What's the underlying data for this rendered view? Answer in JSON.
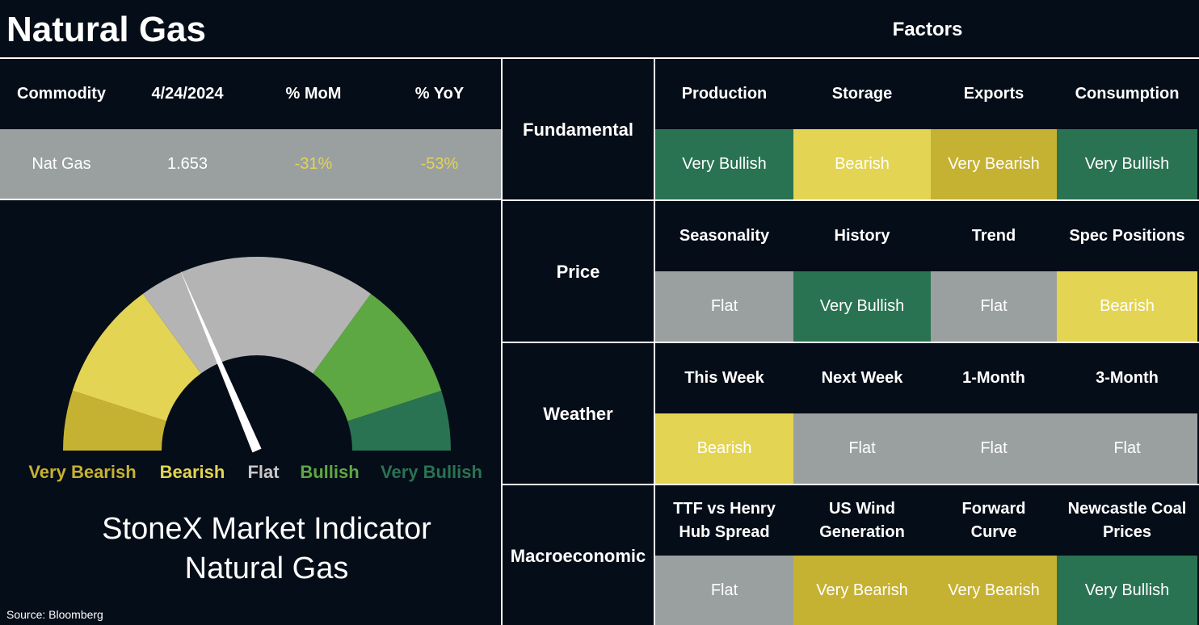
{
  "header": {
    "title": "Natural Gas",
    "factors_title": "Factors"
  },
  "scale": [
    {
      "label": "Very Bearish",
      "color": "#c6b232"
    },
    {
      "label": "Bearish",
      "color": "#e3d453"
    },
    {
      "label": "Flat",
      "color": "#9aa0a0"
    },
    {
      "label": "Bullish",
      "color": "#5ea843"
    },
    {
      "label": "Very Bullish",
      "color": "#2a7352"
    }
  ],
  "commodity_table": {
    "columns": [
      "Commodity",
      "4/24/2024",
      "% MoM",
      "% YoY"
    ],
    "row": [
      "Nat Gas",
      "1.653",
      "-31%",
      "-53%"
    ]
  },
  "indicator": {
    "lines": [
      "StoneX Market Indicator",
      "Natural Gas"
    ]
  },
  "source": "Source: Bloomberg",
  "groups": [
    {
      "name": "Fundamental",
      "factors": [
        {
          "name": [
            "Production"
          ],
          "status": "Very Bullish"
        },
        {
          "name": [
            "Storage"
          ],
          "status": "Bearish"
        },
        {
          "name": [
            "Exports"
          ],
          "status": "Very Bearish"
        },
        {
          "name": [
            "Consumption"
          ],
          "status": "Very Bullish"
        }
      ]
    },
    {
      "name": "Price",
      "factors": [
        {
          "name": [
            "Seasonality"
          ],
          "status": "Flat"
        },
        {
          "name": [
            "History"
          ],
          "status": "Very Bullish"
        },
        {
          "name": [
            "Trend"
          ],
          "status": "Flat"
        },
        {
          "name": [
            "Spec Positions"
          ],
          "status": "Bearish"
        }
      ]
    },
    {
      "name": "Weather",
      "factors": [
        {
          "name": [
            "This Week"
          ],
          "status": "Bearish"
        },
        {
          "name": [
            "Next Week"
          ],
          "status": "Flat"
        },
        {
          "name": [
            "1-Month"
          ],
          "status": "Flat"
        },
        {
          "name": [
            "3-Month"
          ],
          "status": "Flat"
        }
      ]
    },
    {
      "name": "Macroeconomic",
      "factors": [
        {
          "name": [
            "TTF vs Henry",
            "Hub Spread"
          ],
          "status": "Flat"
        },
        {
          "name": [
            "US Wind",
            "Generation"
          ],
          "status": "Very Bearish"
        },
        {
          "name": [
            "Forward",
            "Curve"
          ],
          "status": "Very Bearish"
        },
        {
          "name": [
            "Newcastle Coal",
            "Prices"
          ],
          "status": "Very Bullish"
        }
      ]
    }
  ]
}
